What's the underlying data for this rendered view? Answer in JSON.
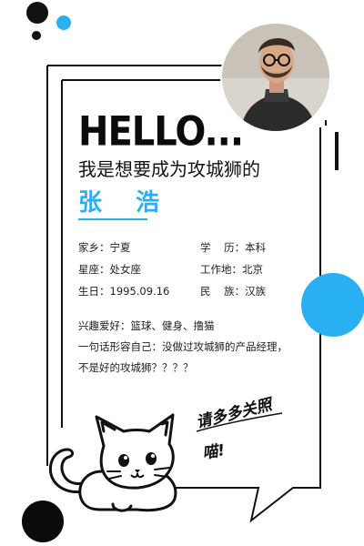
{
  "card": {
    "greeting": "HELLO...",
    "intro": "我是想要成为攻城狮的",
    "name": "张  浩",
    "accent_color": "#29b0f3"
  },
  "info": {
    "hometown_label": "家乡：",
    "hometown_value": "宁夏",
    "education_label": "学    历：",
    "education_value": "本科",
    "zodiac_label": "星座：",
    "zodiac_value": "处女座",
    "workplace_label": "工作地：",
    "workplace_value": "北京",
    "birthday_label": "生日：",
    "birthday_value": "1995.09.16",
    "ethnicity_label": "民    族：",
    "ethnicity_value": "汉族"
  },
  "about": {
    "hobbies": "兴趣爱好：篮球、健身、撸猫",
    "motto_line1": "一句话形容自己：没做过攻城狮的产品经理，",
    "motto_line2": "不是好的攻城狮？？？？"
  },
  "handwritten": {
    "line1": "请多多关照",
    "line2": "喵!"
  },
  "icons": {
    "avatar": "avatar-photo",
    "cat": "cat-illustration"
  }
}
